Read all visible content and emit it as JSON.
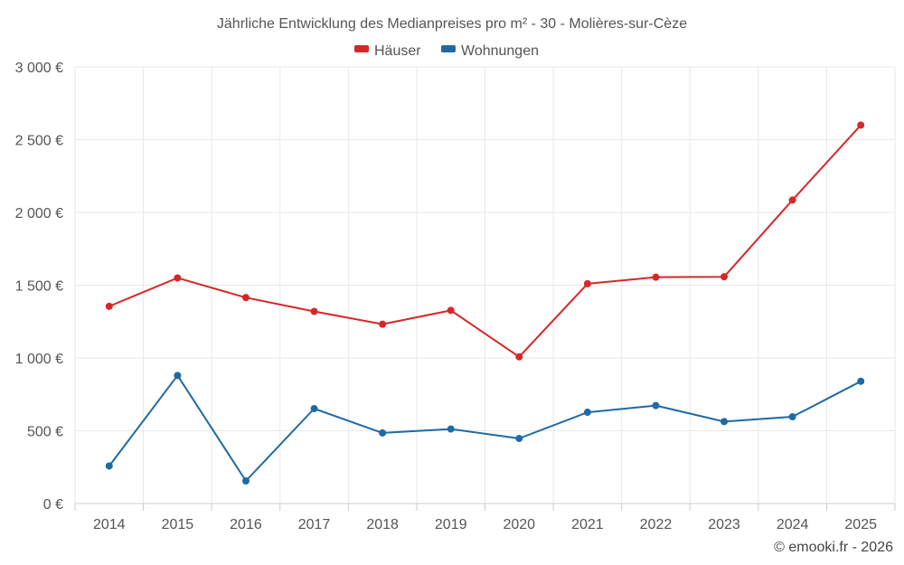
{
  "chart_data": {
    "type": "line",
    "title": "Jährliche Entwicklung des Medianpreises pro m² - 30 - Molières-sur-Cèze",
    "categories": [
      "2014",
      "2015",
      "2016",
      "2017",
      "2018",
      "2019",
      "2020",
      "2021",
      "2022",
      "2023",
      "2024",
      "2025"
    ],
    "series": [
      {
        "name": "Häuser",
        "color": "#d62728",
        "values": [
          1355,
          1550,
          1415,
          1320,
          1232,
          1327,
          1008,
          1510,
          1555,
          1558,
          2085,
          2600
        ]
      },
      {
        "name": "Wohnungen",
        "color": "#1f6aa5",
        "values": [
          258,
          880,
          155,
          652,
          485,
          512,
          447,
          627,
          673,
          563,
          596,
          840
        ]
      }
    ],
    "y_ticks": [
      0,
      500,
      1000,
      1500,
      2000,
      2500,
      3000
    ],
    "y_tick_labels": [
      "0 €",
      "500 €",
      "1 000 €",
      "1 500 €",
      "2 000 €",
      "2 500 €",
      "3 000 €"
    ],
    "ylim": [
      0,
      3000
    ],
    "xlabel": "",
    "ylabel": "",
    "legend_position": "top-center",
    "grid": true
  },
  "credit": "© emooki.fr - 2026"
}
